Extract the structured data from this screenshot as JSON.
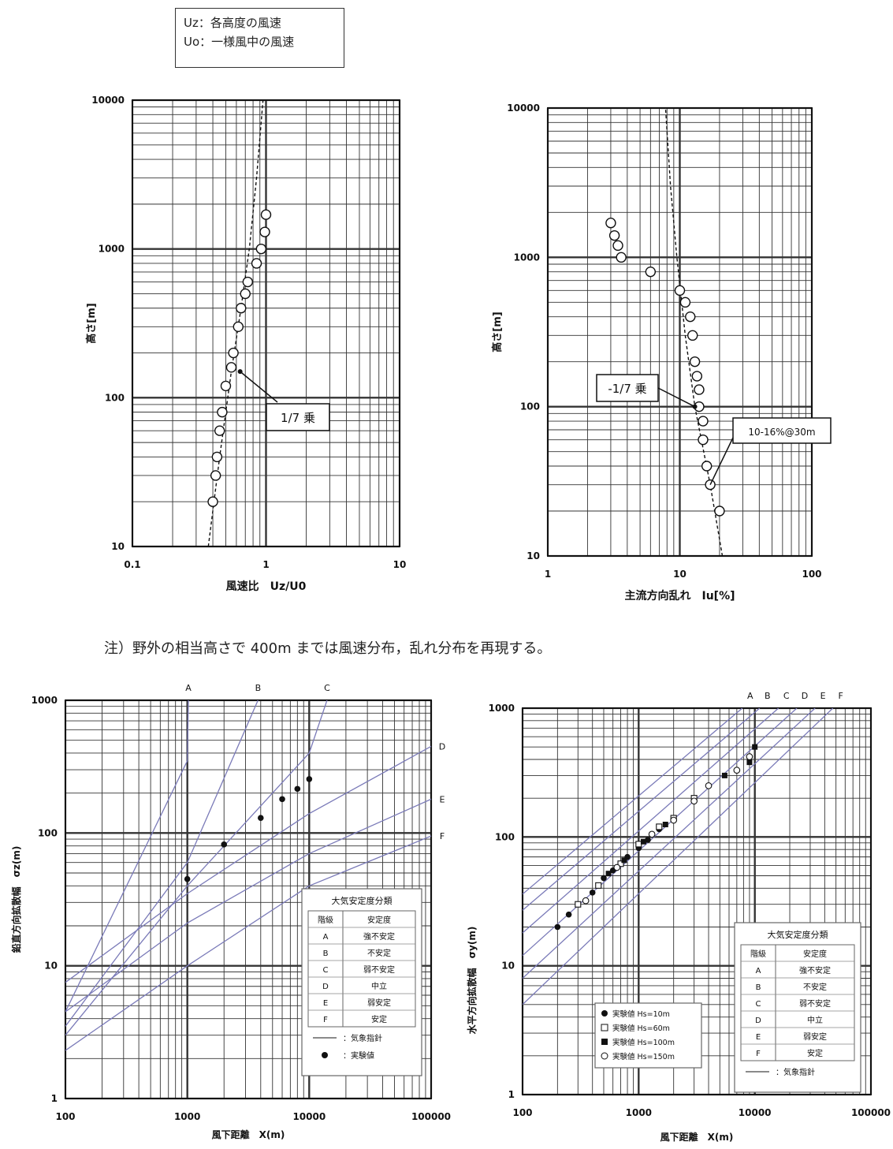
{
  "header_legend": {
    "line1": "Uz：各高度の風速",
    "line2": "Uo：一様風中の風速"
  },
  "note": "注）野外の相当高さで 400m までは風速分布，乱れ分布を再現する。",
  "colors": {
    "grid": "#333333",
    "blue": "#7a7ab8",
    "ink": "#111111"
  },
  "chart_data": [
    {
      "id": "wind-speed-profile",
      "type": "scatter",
      "xlabel": "風速比　Uz/U0",
      "ylabel": "高さ[m]",
      "xscale": "log",
      "yscale": "log",
      "xlim": [
        0.1,
        10
      ],
      "ylim": [
        10,
        10000
      ],
      "xticks": [
        "0.1",
        "1",
        "10"
      ],
      "yticks": [
        "10",
        "100",
        "1000",
        "10000"
      ],
      "annotation": "1/7 乗",
      "points": [
        {
          "x": 0.4,
          "y": 20
        },
        {
          "x": 0.42,
          "y": 30
        },
        {
          "x": 0.43,
          "y": 40
        },
        {
          "x": 0.45,
          "y": 60
        },
        {
          "x": 0.47,
          "y": 80
        },
        {
          "x": 0.5,
          "y": 120
        },
        {
          "x": 0.55,
          "y": 160
        },
        {
          "x": 0.57,
          "y": 200
        },
        {
          "x": 0.62,
          "y": 300
        },
        {
          "x": 0.65,
          "y": 400
        },
        {
          "x": 0.7,
          "y": 500
        },
        {
          "x": 0.73,
          "y": 600
        },
        {
          "x": 0.85,
          "y": 800
        },
        {
          "x": 0.92,
          "y": 1000
        },
        {
          "x": 0.98,
          "y": 1300
        },
        {
          "x": 1.0,
          "y": 1700
        }
      ],
      "reference_curve": {
        "name": "1/7 乗",
        "points": [
          {
            "x": 0.37,
            "y": 10
          },
          {
            "x": 0.45,
            "y": 40
          },
          {
            "x": 0.55,
            "y": 150
          },
          {
            "x": 0.65,
            "y": 400
          },
          {
            "x": 0.75,
            "y": 1000
          },
          {
            "x": 0.85,
            "y": 3000
          },
          {
            "x": 0.95,
            "y": 10000
          }
        ]
      }
    },
    {
      "id": "turbulence-profile",
      "type": "scatter",
      "xlabel": "主流方向乱れ　Iu[%]",
      "ylabel": "高さ[m]",
      "xscale": "log",
      "yscale": "log",
      "xlim": [
        1,
        100
      ],
      "ylim": [
        10,
        10000
      ],
      "xticks": [
        "1",
        "10",
        "100"
      ],
      "yticks": [
        "10",
        "100",
        "1000",
        "10000"
      ],
      "annotations": [
        "-1/7 乗",
        "10-16%@30m"
      ],
      "points": [
        {
          "x": 3.0,
          "y": 1700
        },
        {
          "x": 3.2,
          "y": 1400
        },
        {
          "x": 3.4,
          "y": 1200
        },
        {
          "x": 3.6,
          "y": 1000
        },
        {
          "x": 6.0,
          "y": 800
        },
        {
          "x": 10,
          "y": 600
        },
        {
          "x": 11,
          "y": 500
        },
        {
          "x": 12,
          "y": 400
        },
        {
          "x": 12.5,
          "y": 300
        },
        {
          "x": 13,
          "y": 200
        },
        {
          "x": 13.5,
          "y": 160
        },
        {
          "x": 14,
          "y": 130
        },
        {
          "x": 14,
          "y": 100
        },
        {
          "x": 15,
          "y": 80
        },
        {
          "x": 15,
          "y": 60
        },
        {
          "x": 16,
          "y": 40
        },
        {
          "x": 17,
          "y": 30
        },
        {
          "x": 20,
          "y": 20
        }
      ],
      "reference_curve": {
        "name": "-1/7 乗",
        "points": [
          {
            "x": 21,
            "y": 10
          },
          {
            "x": 17,
            "y": 30
          },
          {
            "x": 13,
            "y": 100
          },
          {
            "x": 11,
            "y": 300
          },
          {
            "x": 9.5,
            "y": 1000
          },
          {
            "x": 8.5,
            "y": 3000
          },
          {
            "x": 7.8,
            "y": 10000
          }
        ]
      }
    },
    {
      "id": "vertical-dispersion",
      "type": "scatter",
      "xlabel": "風下距離　X(m)",
      "ylabel": "鉛直方向拡散幅　σz(m)",
      "xscale": "log",
      "yscale": "log",
      "xlim": [
        100,
        100000
      ],
      "ylim": [
        1,
        1000
      ],
      "xticks": [
        "100",
        "1000",
        "10000",
        "100000"
      ],
      "yticks": [
        "1",
        "10",
        "100",
        "1000"
      ],
      "class_curves": [
        {
          "label": "A",
          "points": [
            {
              "x": 100,
              "y": 4.5
            },
            {
              "x": 1000,
              "y": 350
            },
            {
              "x": 1020,
              "y": 1000
            }
          ]
        },
        {
          "label": "B",
          "points": [
            {
              "x": 100,
              "y": 3.5
            },
            {
              "x": 1000,
              "y": 60
            },
            {
              "x": 3800,
              "y": 1000
            }
          ]
        },
        {
          "label": "C",
          "points": [
            {
              "x": 100,
              "y": 3.0
            },
            {
              "x": 1000,
              "y": 40
            },
            {
              "x": 10000,
              "y": 400
            },
            {
              "x": 14000,
              "y": 1000
            }
          ]
        },
        {
          "label": "D",
          "points": [
            {
              "x": 100,
              "y": 7.5
            },
            {
              "x": 1000,
              "y": 35
            },
            {
              "x": 10000,
              "y": 140
            },
            {
              "x": 100000,
              "y": 450
            }
          ]
        },
        {
          "label": "E",
          "points": [
            {
              "x": 100,
              "y": 4.5
            },
            {
              "x": 1000,
              "y": 21
            },
            {
              "x": 10000,
              "y": 70
            },
            {
              "x": 100000,
              "y": 180
            }
          ]
        },
        {
          "label": "F",
          "points": [
            {
              "x": 100,
              "y": 2.3
            },
            {
              "x": 1000,
              "y": 10
            },
            {
              "x": 10000,
              "y": 40
            },
            {
              "x": 100000,
              "y": 95
            }
          ]
        }
      ],
      "points": [
        {
          "x": 1000,
          "y": 45
        },
        {
          "x": 2000,
          "y": 82
        },
        {
          "x": 4000,
          "y": 130
        },
        {
          "x": 6000,
          "y": 180
        },
        {
          "x": 8000,
          "y": 215
        },
        {
          "x": 10000,
          "y": 255
        }
      ],
      "legend": {
        "title": "大気安定度分類",
        "header": [
          "階級",
          "安定度"
        ],
        "rows": [
          [
            "A",
            "強不安定"
          ],
          [
            "B",
            "不安定"
          ],
          [
            "C",
            "弱不安定"
          ],
          [
            "D",
            "中立"
          ],
          [
            "E",
            "弱安定"
          ],
          [
            "F",
            "安定"
          ]
        ],
        "line_label": "：気象指針",
        "dot_label": "：実験値"
      }
    },
    {
      "id": "horizontal-dispersion",
      "type": "scatter",
      "xlabel": "風下距離　X(m)",
      "ylabel": "水平方向拡散幅　σy(m)",
      "xscale": "log",
      "yscale": "log",
      "xlim": [
        100,
        100000
      ],
      "ylim": [
        1,
        1000
      ],
      "xticks": [
        "100",
        "1000",
        "10000",
        "100000"
      ],
      "yticks": [
        "1",
        "10",
        "100",
        "1000"
      ],
      "class_labels": [
        "A",
        "B",
        "C",
        "D",
        "E",
        "F"
      ],
      "class_curves": [
        {
          "label": "A",
          "start": 36,
          "end_x": 7800
        },
        {
          "label": "B",
          "start": 27,
          "end_x": 11000
        },
        {
          "label": "C",
          "start": 18,
          "end_x": 16000
        },
        {
          "label": "D",
          "start": 12,
          "end_x": 23000
        },
        {
          "label": "E",
          "start": 8,
          "end_x": 33000
        },
        {
          "label": "F",
          "start": 5,
          "end_x": 47000
        }
      ],
      "series": [
        {
          "name": "実験値 Hs=10m",
          "marker": "filled-circle",
          "points": [
            {
              "x": 200,
              "y": 20
            },
            {
              "x": 250,
              "y": 25
            },
            {
              "x": 400,
              "y": 37
            },
            {
              "x": 500,
              "y": 48
            },
            {
              "x": 600,
              "y": 55
            },
            {
              "x": 800,
              "y": 70
            },
            {
              "x": 1000,
              "y": 82
            },
            {
              "x": 1200,
              "y": 95
            },
            {
              "x": 1500,
              "y": 115
            }
          ]
        },
        {
          "name": "実験値 Hs=60m",
          "marker": "open-square",
          "points": [
            {
              "x": 300,
              "y": 30
            },
            {
              "x": 450,
              "y": 42
            },
            {
              "x": 700,
              "y": 62
            },
            {
              "x": 1000,
              "y": 88
            },
            {
              "x": 1500,
              "y": 120
            },
            {
              "x": 2000,
              "y": 140
            },
            {
              "x": 3000,
              "y": 200
            }
          ]
        },
        {
          "name": "実験値 Hs=100m",
          "marker": "filled-square",
          "points": [
            {
              "x": 550,
              "y": 52
            },
            {
              "x": 750,
              "y": 66
            },
            {
              "x": 1100,
              "y": 92
            },
            {
              "x": 1700,
              "y": 125
            },
            {
              "x": 5500,
              "y": 300
            },
            {
              "x": 9000,
              "y": 380
            },
            {
              "x": 10000,
              "y": 500
            }
          ]
        },
        {
          "name": "実験値 Hs=150m",
          "marker": "open-circle",
          "points": [
            {
              "x": 350,
              "y": 32
            },
            {
              "x": 650,
              "y": 58
            },
            {
              "x": 1300,
              "y": 105
            },
            {
              "x": 2000,
              "y": 135
            },
            {
              "x": 3000,
              "y": 190
            },
            {
              "x": 4000,
              "y": 250
            },
            {
              "x": 7000,
              "y": 330
            },
            {
              "x": 9000,
              "y": 420
            }
          ]
        }
      ],
      "legend": {
        "title": "大気安定度分類",
        "header": [
          "階級",
          "安定度"
        ],
        "rows": [
          [
            "A",
            "強不安定"
          ],
          [
            "B",
            "不安定"
          ],
          [
            "C",
            "弱不安定"
          ],
          [
            "D",
            "中立"
          ],
          [
            "E",
            "弱安定"
          ],
          [
            "F",
            "安定"
          ]
        ],
        "line_label": "：気象指針"
      }
    }
  ]
}
